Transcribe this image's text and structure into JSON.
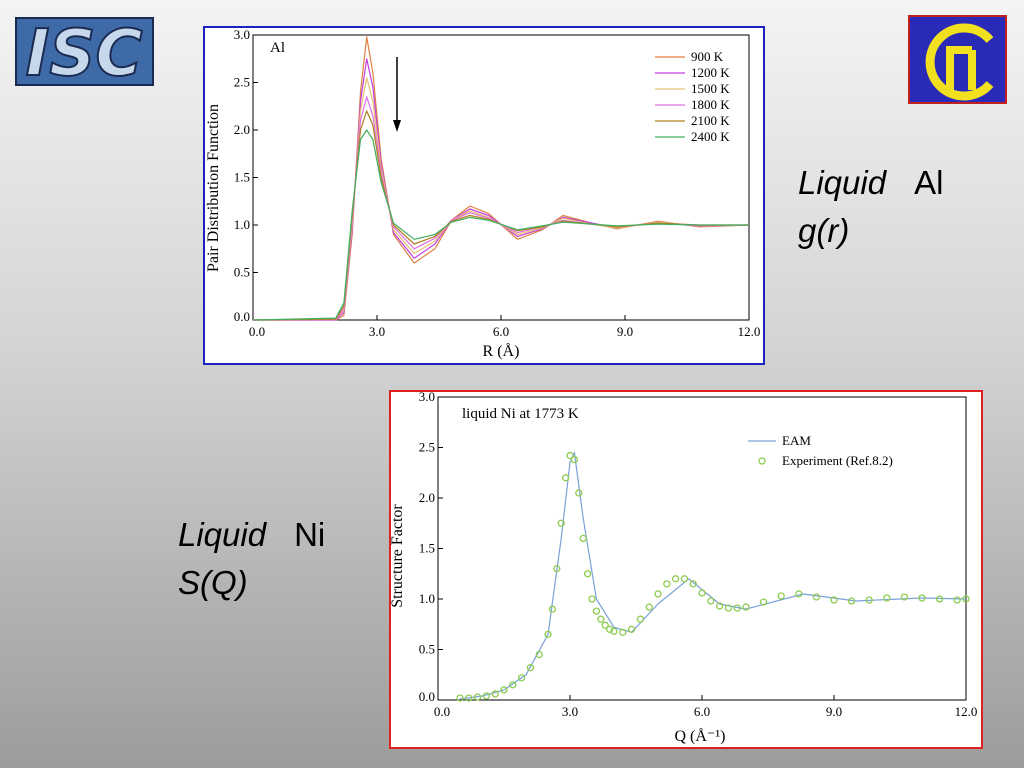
{
  "logos": {
    "left": "ISC"
  },
  "captions": [
    {
      "word": "Liquid",
      "element": "Al",
      "function": "g(r)"
    },
    {
      "word": "Liquid",
      "element": "Ni",
      "function": "S(Q)"
    }
  ],
  "chart_data": [
    {
      "type": "line",
      "annotation": "Al",
      "x_label": "R (Å)",
      "y_label": "Pair Distribution Function",
      "xlim": [
        0,
        12
      ],
      "ylim": [
        0,
        3
      ],
      "xticks": [
        {
          "value": 0,
          "label": "0.0"
        },
        {
          "value": 3,
          "label": "3.0"
        },
        {
          "value": 6,
          "label": "6.0"
        },
        {
          "value": 9,
          "label": "9.0"
        },
        {
          "value": 12,
          "label": "12.0"
        }
      ],
      "yticks": [
        {
          "value": 0,
          "label": "0.0"
        },
        {
          "value": 0.5,
          "label": "0.5"
        },
        {
          "value": 1,
          "label": "1.0"
        },
        {
          "value": 1.5,
          "label": "1.5"
        },
        {
          "value": 2,
          "label": "2.0"
        },
        {
          "value": 2.5,
          "label": "2.5"
        },
        {
          "value": 3,
          "label": "3.0"
        }
      ],
      "legend": "top-right",
      "x": [
        0,
        2.0,
        2.2,
        2.4,
        2.6,
        2.75,
        2.9,
        3.1,
        3.4,
        3.9,
        4.4,
        4.8,
        5.25,
        5.7,
        6.4,
        7.0,
        7.5,
        8.2,
        8.8,
        9.8,
        10.8,
        12
      ],
      "series": [
        {
          "name": "900 K",
          "color": "#e08040",
          "mode": "line",
          "values": [
            0,
            0,
            0.05,
            0.9,
            2.4,
            2.98,
            2.6,
            1.7,
            0.9,
            0.6,
            0.75,
            1.05,
            1.2,
            1.12,
            0.85,
            0.95,
            1.1,
            1.02,
            0.96,
            1.04,
            0.98,
            1.0
          ]
        },
        {
          "name": "1200 K",
          "color": "#c040e0",
          "mode": "line",
          "values": [
            0,
            0,
            0.08,
            0.95,
            2.3,
            2.75,
            2.45,
            1.65,
            0.92,
            0.65,
            0.8,
            1.05,
            1.17,
            1.1,
            0.88,
            0.96,
            1.08,
            1.02,
            0.97,
            1.03,
            0.99,
            1.0
          ]
        },
        {
          "name": "1500 K",
          "color": "#e8c070",
          "mode": "line",
          "values": [
            0,
            0,
            0.1,
            1.0,
            2.2,
            2.55,
            2.3,
            1.6,
            0.95,
            0.7,
            0.83,
            1.05,
            1.15,
            1.08,
            0.9,
            0.97,
            1.07,
            1.01,
            0.97,
            1.03,
            0.99,
            1.0
          ]
        },
        {
          "name": "1800 K",
          "color": "#e070e0",
          "mode": "line",
          "values": [
            0,
            0,
            0.12,
            1.05,
            2.1,
            2.35,
            2.15,
            1.55,
            0.98,
            0.75,
            0.86,
            1.05,
            1.13,
            1.07,
            0.92,
            0.98,
            1.05,
            1.01,
            0.98,
            1.02,
            0.99,
            1.0
          ]
        },
        {
          "name": "2100 K",
          "color": "#b08020",
          "mode": "line",
          "values": [
            0,
            0.01,
            0.15,
            1.1,
            2.0,
            2.2,
            2.05,
            1.5,
            1.0,
            0.8,
            0.88,
            1.04,
            1.1,
            1.06,
            0.94,
            0.98,
            1.04,
            1.01,
            0.98,
            1.02,
            1.0,
            1.0
          ]
        },
        {
          "name": "2400 K",
          "color": "#40b060",
          "mode": "line",
          "values": [
            0,
            0.02,
            0.18,
            1.15,
            1.9,
            2.0,
            1.9,
            1.45,
            1.02,
            0.85,
            0.9,
            1.03,
            1.08,
            1.05,
            0.95,
            0.99,
            1.03,
            1.01,
            0.99,
            1.01,
            1.0,
            1.0
          ]
        }
      ]
    },
    {
      "type": "line",
      "annotation": "liquid Ni at 1773 K",
      "x_label": "Q (Å⁻¹)",
      "y_label": "Structure Factor",
      "xlim": [
        0,
        12
      ],
      "ylim": [
        0,
        3
      ],
      "xticks": [
        {
          "value": 0,
          "label": "0.0"
        },
        {
          "value": 3,
          "label": "3.0"
        },
        {
          "value": 6,
          "label": "6.0"
        },
        {
          "value": 9,
          "label": "9.0"
        },
        {
          "value": 12,
          "label": "12.0"
        }
      ],
      "yticks": [
        {
          "value": 0,
          "label": "0.0"
        },
        {
          "value": 0.5,
          "label": "0.5"
        },
        {
          "value": 1,
          "label": "1.0"
        },
        {
          "value": 1.5,
          "label": "1.5"
        },
        {
          "value": 2,
          "label": "2.0"
        },
        {
          "value": 2.5,
          "label": "2.5"
        },
        {
          "value": 3,
          "label": "3.0"
        }
      ],
      "legend": "top-right",
      "series": [
        {
          "name": "EAM",
          "color": "#7aa0d8",
          "mode": "line",
          "x": [
            0.5,
            1,
            1.5,
            2,
            2.5,
            2.8,
            3.0,
            3.1,
            3.3,
            3.6,
            4.0,
            4.4,
            5.0,
            5.7,
            6.4,
            7.0,
            8.3,
            9.5,
            11,
            12
          ],
          "values": [
            0.01,
            0.04,
            0.1,
            0.25,
            0.65,
            1.6,
            2.35,
            2.45,
            1.8,
            1.0,
            0.72,
            0.67,
            0.95,
            1.2,
            0.95,
            0.9,
            1.05,
            0.98,
            1.01,
            1.0
          ]
        },
        {
          "name": "Experiment (Ref.8.2)",
          "color": "#8ccc50",
          "mode": "markers",
          "x": [
            0.5,
            0.7,
            0.9,
            1.1,
            1.3,
            1.5,
            1.7,
            1.9,
            2.1,
            2.3,
            2.5,
            2.6,
            2.7,
            2.8,
            2.9,
            3.0,
            3.1,
            3.2,
            3.3,
            3.4,
            3.5,
            3.6,
            3.7,
            3.8,
            3.9,
            4.0,
            4.2,
            4.4,
            4.6,
            4.8,
            5.0,
            5.2,
            5.4,
            5.6,
            5.8,
            6.0,
            6.2,
            6.4,
            6.6,
            6.8,
            7.0,
            7.4,
            7.8,
            8.2,
            8.6,
            9.0,
            9.4,
            9.8,
            10.2,
            10.6,
            11.0,
            11.4,
            11.8,
            12.0
          ],
          "values": [
            0.02,
            0.02,
            0.03,
            0.04,
            0.06,
            0.1,
            0.15,
            0.22,
            0.32,
            0.45,
            0.65,
            0.9,
            1.3,
            1.75,
            2.2,
            2.42,
            2.38,
            2.05,
            1.6,
            1.25,
            1.0,
            0.88,
            0.8,
            0.74,
            0.7,
            0.68,
            0.67,
            0.7,
            0.8,
            0.92,
            1.05,
            1.15,
            1.2,
            1.2,
            1.15,
            1.06,
            0.98,
            0.93,
            0.91,
            0.91,
            0.92,
            0.97,
            1.03,
            1.05,
            1.02,
            0.99,
            0.98,
            0.99,
            1.01,
            1.02,
            1.01,
            1.0,
            0.99,
            1.0
          ]
        }
      ]
    }
  ]
}
